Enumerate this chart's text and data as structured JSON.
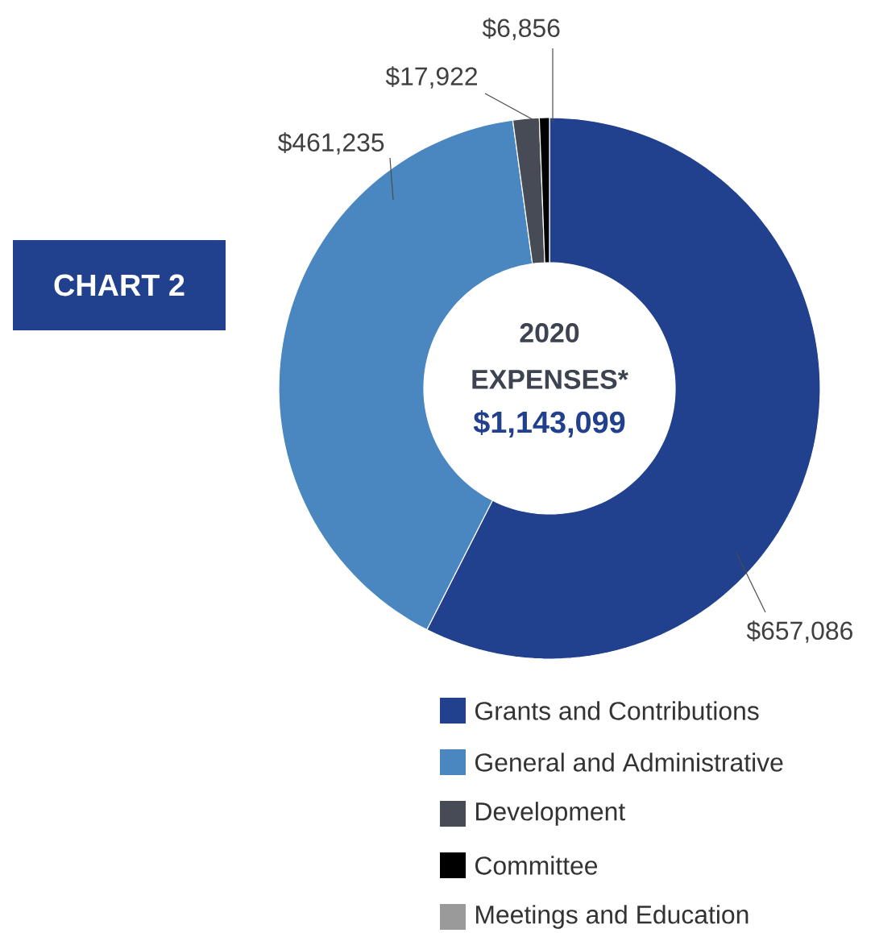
{
  "chart_data": {
    "type": "donut",
    "title": "CHART 2",
    "annotations": [
      "2020 EXPENSES*",
      "$1,143,099"
    ],
    "categories": [
      "Grants and Contributions",
      "General and Administrative",
      "Development",
      "Committee",
      "Meetings and Education"
    ],
    "values": [
      657086,
      461235,
      17922,
      6856,
      0
    ],
    "colors": [
      "#21418f",
      "#4a86c0",
      "#474b55",
      "#000000",
      "#9a9a9a"
    ],
    "value_labels": [
      "$657,086",
      "$461,235",
      "$17,922",
      "$6,856",
      null
    ],
    "legend": "bottom right"
  }
}
